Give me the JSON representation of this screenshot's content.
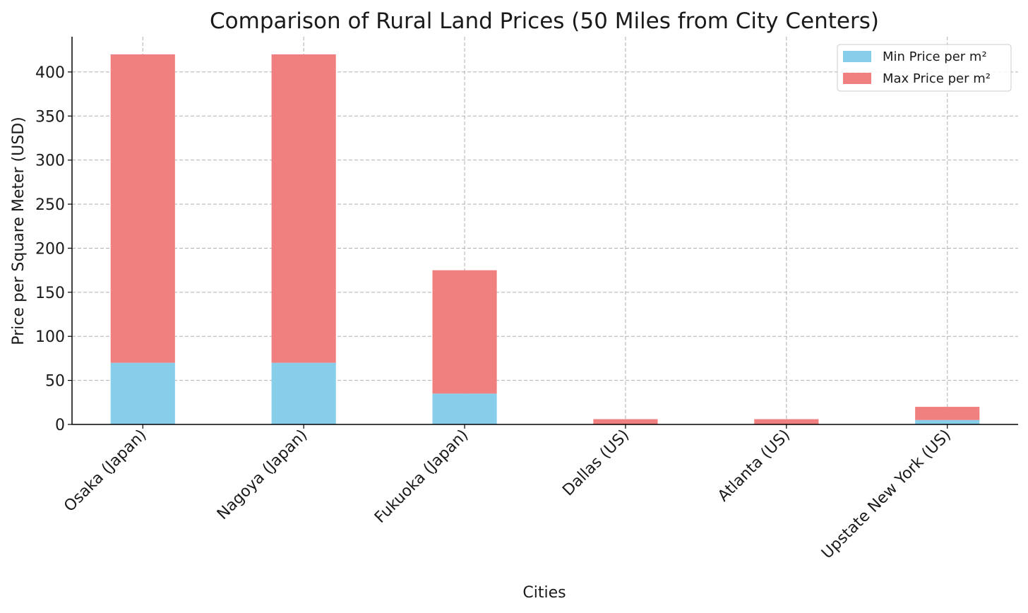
{
  "chart_data": {
    "type": "bar",
    "stacked": true,
    "title": "Comparison of Rural Land Prices (50 Miles from City Centers)",
    "xlabel": "Cities",
    "ylabel": "Price per Square Meter (USD)",
    "categories": [
      "Osaka (Japan)",
      "Nagoya (Japan)",
      "Fukuoka (Japan)",
      "Dallas (US)",
      "Atlanta (US)",
      "Upstate New York (US)"
    ],
    "series": [
      {
        "name": "Min Price per m²",
        "color": "#87ceeb",
        "values": [
          70,
          70,
          35,
          0,
          0,
          5
        ]
      },
      {
        "name": "Max Price per m²",
        "color": "#f08080",
        "values": [
          350,
          350,
          140,
          6,
          6,
          15
        ]
      }
    ],
    "ylim": [
      0,
      440
    ],
    "yticks": [
      0,
      50,
      100,
      150,
      200,
      250,
      300,
      350,
      400
    ],
    "grid": true,
    "legend_position": "top-right"
  }
}
